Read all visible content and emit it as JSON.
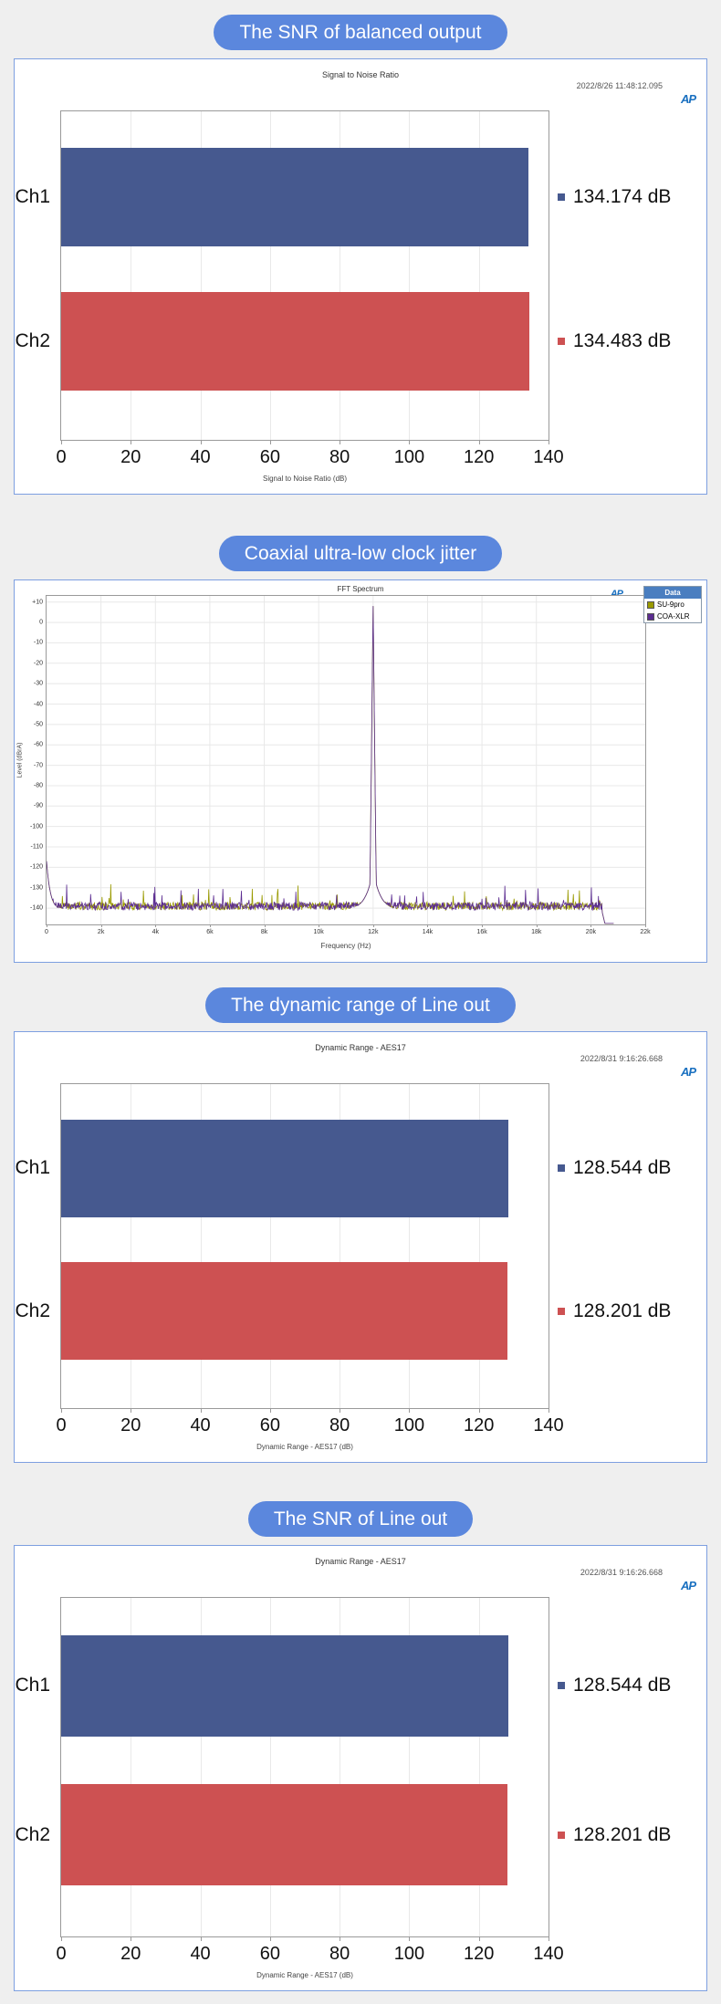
{
  "logo_text": "AP",
  "colors": {
    "pill_bg": "#5b87dd",
    "panel_border": "#7d9fe0",
    "page_bg": "#efefef",
    "ch1_bar": "#46598f",
    "ch2_bar": "#cd5152",
    "legend_header_bg": "#4a7ec0"
  },
  "sections": [
    {
      "title": "The SNR of balanced output"
    },
    {
      "title": "Coaxial ultra-low clock jitter"
    },
    {
      "title": "The dynamic range of Line out"
    },
    {
      "title": "The SNR of Line out"
    }
  ],
  "chart_data": [
    {
      "type": "bar",
      "orientation": "horizontal",
      "title": "Signal to Noise Ratio",
      "timestamp": "2022/8/26 11:48:12.095",
      "categories": [
        "Ch1",
        "Ch2"
      ],
      "values": [
        134.174,
        134.483
      ],
      "value_labels": [
        "134.174 dB",
        "134.483 dB"
      ],
      "bar_colors": [
        "#46598f",
        "#cd5152"
      ],
      "xlabel": "Signal to Noise Ratio (dB)",
      "xlim": [
        0,
        140
      ],
      "xticks": [
        0,
        20,
        40,
        60,
        80,
        100,
        120,
        140
      ],
      "grid": true,
      "legend_position": "right-of-bars"
    },
    {
      "type": "line",
      "title": "FFT Spectrum",
      "xlabel": "Frequency (Hz)",
      "ylabel": "Level (dBrA)",
      "xlim": [
        0,
        22000
      ],
      "ylim": [
        -148,
        13
      ],
      "xticks": [
        0,
        2000,
        4000,
        6000,
        8000,
        10000,
        12000,
        14000,
        16000,
        18000,
        20000,
        22000
      ],
      "xtick_labels": [
        "0",
        "2k",
        "4k",
        "6k",
        "8k",
        "10k",
        "12k",
        "14k",
        "16k",
        "18k",
        "20k",
        "22k"
      ],
      "yticks": [
        10,
        0,
        -10,
        -20,
        -30,
        -40,
        -50,
        -60,
        -70,
        -80,
        -90,
        -100,
        -110,
        -120,
        -130,
        -140
      ],
      "ytick_labels": [
        "+10",
        "0",
        "-10",
        "-20",
        "-30",
        "-40",
        "-50",
        "-60",
        "-70",
        "-80",
        "-90",
        "-100",
        "-110",
        "-120",
        "-130",
        "-140"
      ],
      "grid": true,
      "legend": {
        "title": "Data",
        "entries": [
          {
            "label": "SU-9pro",
            "color": "#9a9a00"
          },
          {
            "label": "COA-XLR",
            "color": "#5c2d91"
          }
        ]
      },
      "series": [
        {
          "name": "SU-9pro",
          "color": "#9a9a00",
          "noise_floor_db": -141,
          "peak_hz": 12000,
          "peak_db": 8,
          "rolloff_hz": 20400,
          "seed": 7
        },
        {
          "name": "COA-XLR",
          "color": "#5c2d91",
          "noise_floor_db": -141,
          "peak_hz": 12000,
          "peak_db": 8,
          "rolloff_hz": 20400,
          "seed": 99
        }
      ]
    },
    {
      "type": "bar",
      "orientation": "horizontal",
      "title": "Dynamic Range - AES17",
      "timestamp": "2022/8/31 9:16:26.668",
      "categories": [
        "Ch1",
        "Ch2"
      ],
      "values": [
        128.544,
        128.201
      ],
      "value_labels": [
        "128.544 dB",
        "128.201 dB"
      ],
      "bar_colors": [
        "#46598f",
        "#cd5152"
      ],
      "xlabel": "Dynamic Range - AES17 (dB)",
      "xlim": [
        0,
        140
      ],
      "xticks": [
        0,
        20,
        40,
        60,
        80,
        100,
        120,
        140
      ],
      "grid": true,
      "legend_position": "right-of-bars"
    },
    {
      "type": "bar",
      "orientation": "horizontal",
      "title": "Dynamic Range - AES17",
      "timestamp": "2022/8/31 9:16:26.668",
      "categories": [
        "Ch1",
        "Ch2"
      ],
      "values": [
        128.544,
        128.201
      ],
      "value_labels": [
        "128.544 dB",
        "128.201 dB"
      ],
      "bar_colors": [
        "#46598f",
        "#cd5152"
      ],
      "xlabel": "Dynamic Range - AES17 (dB)",
      "xlim": [
        0,
        140
      ],
      "xticks": [
        0,
        20,
        40,
        60,
        80,
        100,
        120,
        140
      ],
      "grid": true,
      "legend_position": "right-of-bars"
    }
  ]
}
